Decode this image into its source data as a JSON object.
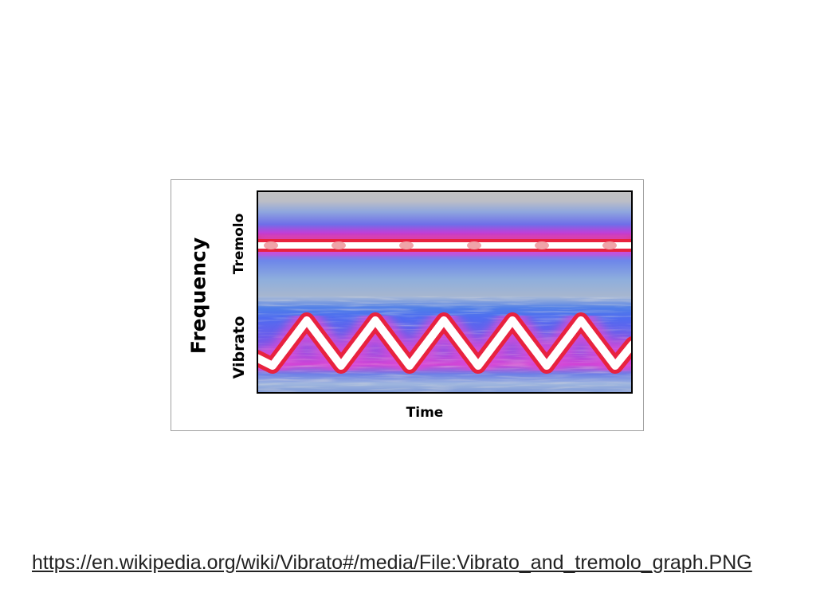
{
  "figure": {
    "y_axis_label": "Frequency",
    "x_axis_label": "Time",
    "band_labels": {
      "top": "Tremolo",
      "bottom": "Vibrato"
    }
  },
  "source_url": "https://en.wikipedia.org/wiki/Vibrato#/media/File:Vibrato_and_tremolo_graph.PNG",
  "colors": {
    "background_gray": "#c0c0c0",
    "noise_blue": "#5e8fe6",
    "haze_magenta": "#d64fe0",
    "band_red": "#e8223f",
    "core_white": "#ffffff"
  }
}
